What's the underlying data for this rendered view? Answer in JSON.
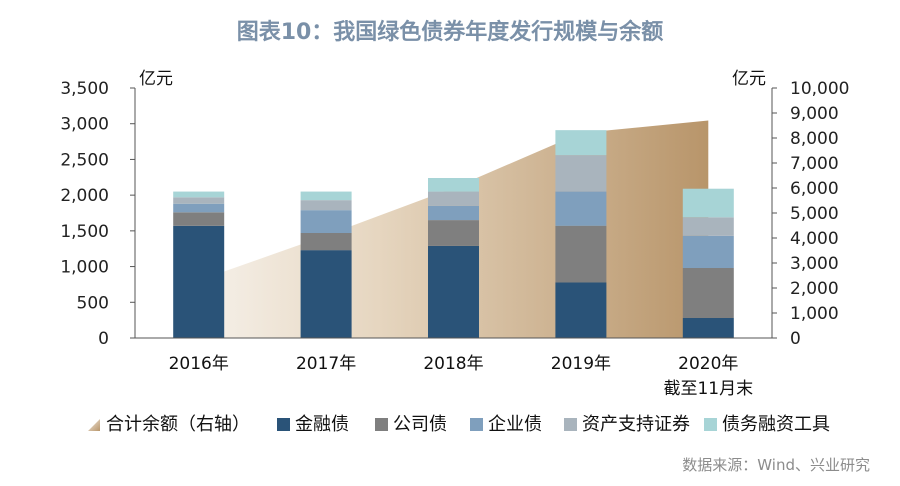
{
  "title": "图表10：我国绿色债券年度发行规模与余额",
  "source": "数据来源：Wind、兴业研究",
  "colors": {
    "金融债": "#2a5378",
    "公司债": "#7f7f7f",
    "企业业债": "#7f9fbd",
    "资产支持证券": "#a9b4bd",
    "债务融资工具": "#a7d4d6",
    "area_light": "#f3ece3",
    "area_dark": "#b8956a"
  },
  "chart_data": {
    "type": "bar",
    "stacked": true,
    "categories": [
      "2016年",
      "2017年",
      "2018年",
      "2019年",
      "2020年"
    ],
    "category_sublabels": [
      "",
      "",
      "",
      "",
      "截至11月末"
    ],
    "left_axis": {
      "unit": "亿元",
      "ylim": [
        0,
        3500
      ],
      "ticks": [
        0,
        500,
        1000,
        1500,
        2000,
        2500,
        3000,
        3500
      ],
      "tick_labels": [
        "0",
        "500",
        "1,000",
        "1,500",
        "2,000",
        "2,500",
        "3,000",
        "3,500"
      ]
    },
    "right_axis": {
      "unit": "亿元",
      "ylim": [
        0,
        10000
      ],
      "ticks": [
        0,
        1000,
        2000,
        3000,
        4000,
        5000,
        6000,
        7000,
        8000,
        9000,
        10000
      ],
      "tick_labels": [
        "0",
        "1,000",
        "2,000",
        "3,000",
        "4,000",
        "5,000",
        "6,000",
        "7,000",
        "8,000",
        "9,000",
        "10,000"
      ]
    },
    "series": [
      {
        "name": "金融债",
        "values": [
          1570,
          1230,
          1290,
          780,
          280
        ]
      },
      {
        "name": "公司债",
        "values": [
          190,
          240,
          360,
          790,
          700
        ]
      },
      {
        "name": "企业债",
        "values": [
          120,
          320,
          200,
          480,
          450
        ]
      },
      {
        "name": "资产支持证券",
        "values": [
          90,
          140,
          200,
          510,
          260
        ]
      },
      {
        "name": "债务融资工具",
        "values": [
          80,
          120,
          190,
          350,
          400
        ]
      }
    ],
    "area_series": {
      "name": "合计余额（右轴）",
      "axis": "right",
      "values": [
        2300,
        4100,
        6000,
        8200,
        8700
      ]
    },
    "legend": [
      "合计余额（右轴）",
      "金融债",
      "公司债",
      "企业债",
      "资产支持证券",
      "债务融资工具"
    ],
    "legend_position": "bottom"
  }
}
